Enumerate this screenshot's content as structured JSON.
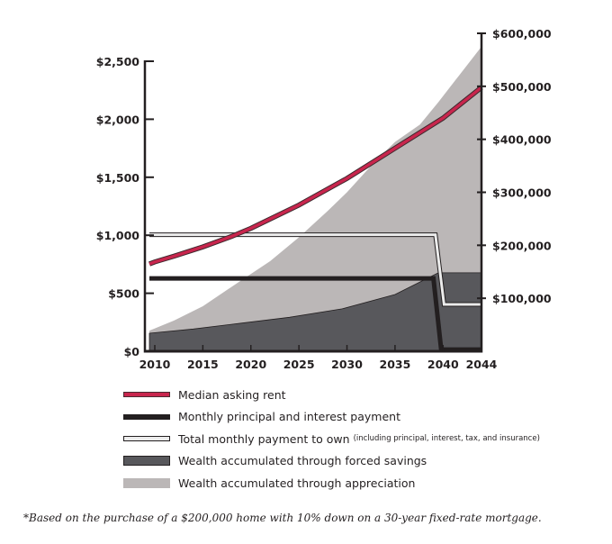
{
  "chart_data": {
    "type": "line",
    "title": "",
    "xlabel": "",
    "x_ticks": [
      "2010",
      "2015",
      "2020",
      "2025",
      "2030",
      "2035",
      "2040",
      "2044"
    ],
    "x_tick_values": [
      2010,
      2015,
      2020,
      2025,
      2030,
      2035,
      2040,
      2044
    ],
    "xlim": [
      2009,
      2044
    ],
    "left_axis": {
      "ylim": [
        0,
        2500
      ],
      "ticks": [
        0,
        500,
        1000,
        1500,
        2000,
        2500
      ],
      "tick_labels": [
        "$0",
        "$500",
        "$1,000",
        "$1,500",
        "$2,000",
        "$2,500"
      ]
    },
    "right_axis": {
      "ylim": [
        0,
        600000
      ],
      "ticks": [
        100000,
        200000,
        300000,
        400000,
        500000,
        600000
      ],
      "tick_labels": [
        "$100,000",
        "$200,000",
        "$300,000",
        "$400,000",
        "$500,000",
        "$600,000"
      ]
    },
    "series": [
      {
        "name": "Median asking rent",
        "axis": "left",
        "kind": "line",
        "color": "#c8254d",
        "x": [
          2009,
          2010,
          2012,
          2015,
          2018,
          2020,
          2025,
          2030,
          2035,
          2040,
          2044
        ],
        "values": [
          752,
          770,
          820,
          900,
          990,
          1060,
          1260,
          1490,
          1750,
          2010,
          2275
        ]
      },
      {
        "name": "Monthly principal and interest payment",
        "axis": "left",
        "kind": "line",
        "color": "#231f20",
        "x": [
          2009,
          2039,
          2039.8,
          2044
        ],
        "values": [
          628,
          628,
          15,
          15
        ]
      },
      {
        "name": "Total monthly payment to own",
        "axis": "left",
        "kind": "line",
        "color": "#ececec",
        "x": [
          2009,
          2039.2,
          2040.1,
          2044
        ],
        "values": [
          1005,
          1005,
          404,
          404
        ]
      },
      {
        "name": "Wealth accumulated through forced savings",
        "axis": "right",
        "kind": "area",
        "color": "#58585c",
        "x": [
          2009,
          2014,
          2019,
          2024,
          2029.5,
          2035,
          2039.5,
          2044
        ],
        "values": [
          34000,
          42000,
          53000,
          64000,
          80000,
          107000,
          148000,
          148000
        ]
      },
      {
        "name": "Wealth accumulated through appreciation",
        "axis": "right",
        "kind": "area",
        "color": "#bbb7b7",
        "x": [
          2009,
          2012,
          2015,
          2019,
          2022,
          2025,
          2028,
          2030,
          2033,
          2035,
          2037.6,
          2039.5,
          2044
        ],
        "values": [
          39000,
          58000,
          85000,
          134000,
          170000,
          215000,
          265000,
          300000,
          360000,
          395000,
          428000,
          470000,
          575000
        ]
      }
    ],
    "legend_position": "bottom"
  },
  "legend": {
    "items": [
      {
        "label": "Median asking rent",
        "note": ""
      },
      {
        "label": "Monthly principal and interest payment",
        "note": ""
      },
      {
        "label": "Total monthly payment to own",
        "note": "(including principal, interest, tax, and insurance)"
      },
      {
        "label": "Wealth accumulated through forced savings",
        "note": ""
      },
      {
        "label": "Wealth accumulated through appreciation",
        "note": ""
      }
    ]
  },
  "footnote": "*Based on the purchase of a $200,000 home with 10% down on a 30-year fixed-rate mortgage."
}
